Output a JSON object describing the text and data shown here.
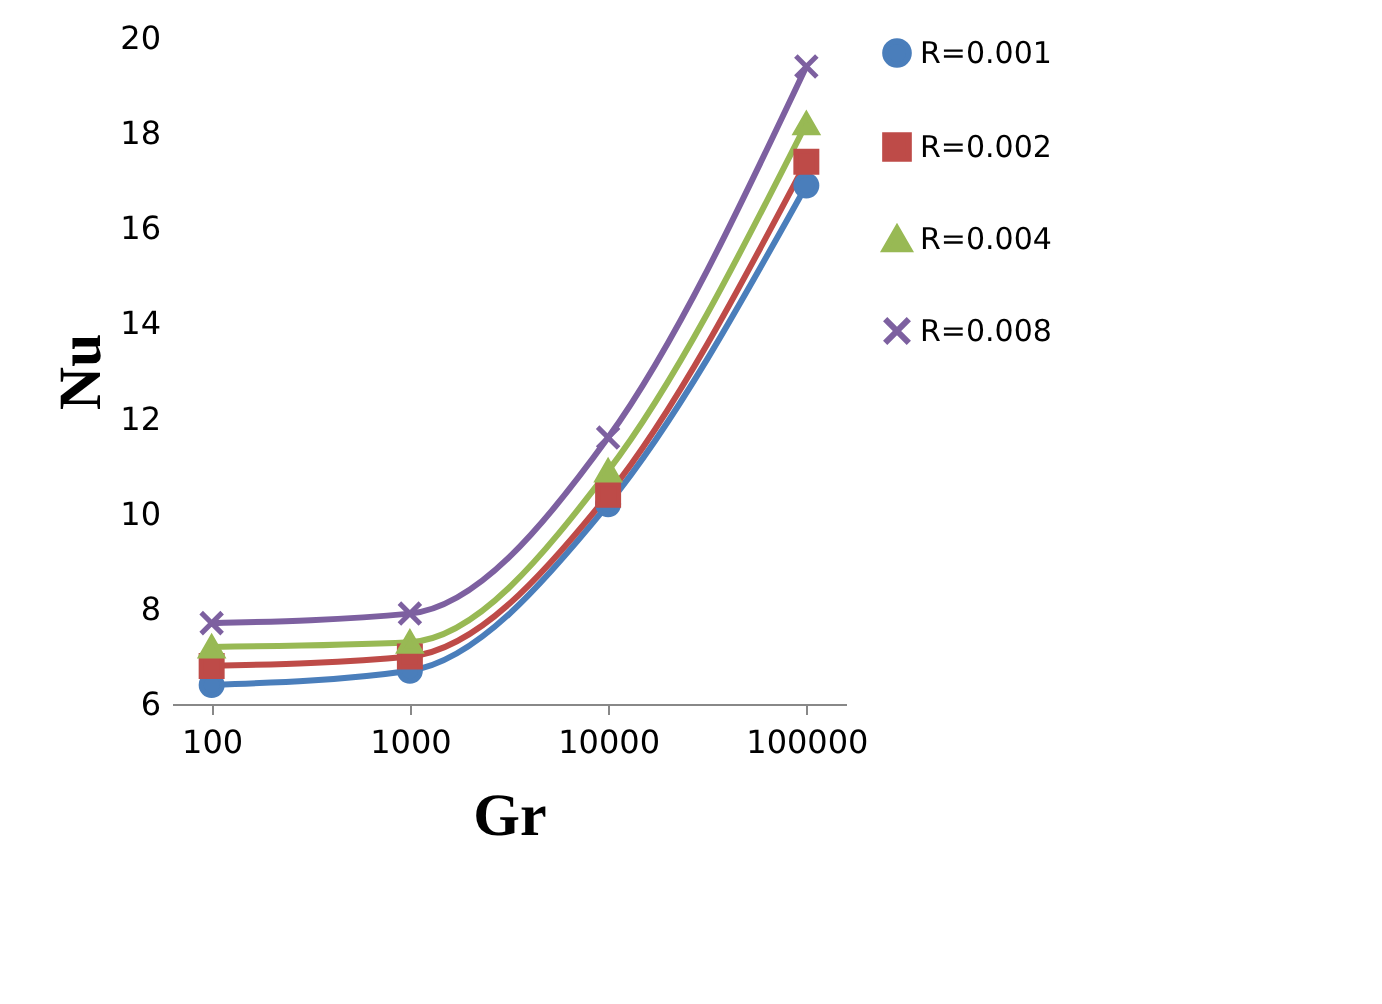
{
  "chart_data": {
    "type": "line",
    "xlabel": "Gr",
    "ylabel": "Nu",
    "categories": [
      "100",
      "1000",
      "10000",
      "100000"
    ],
    "series": [
      {
        "name": "R=0.001",
        "color": "#4a7ebb",
        "marker": "circle",
        "values": [
          6.4,
          6.7,
          10.2,
          16.9
        ]
      },
      {
        "name": "R=0.002",
        "color": "#be4b48",
        "marker": "square",
        "values": [
          6.8,
          7.0,
          10.4,
          17.4
        ]
      },
      {
        "name": "R=0.004",
        "color": "#98b954",
        "marker": "triangle",
        "values": [
          7.2,
          7.3,
          10.9,
          18.2
        ]
      },
      {
        "name": "R=0.008",
        "color": "#7d60a0",
        "marker": "cross",
        "values": [
          7.7,
          7.9,
          11.6,
          19.4
        ]
      }
    ],
    "ylim": [
      6,
      20
    ],
    "yticks": [
      6,
      8,
      10,
      12,
      14,
      16,
      18,
      20
    ],
    "grid": false,
    "legend": "right",
    "line_style": "solid"
  }
}
